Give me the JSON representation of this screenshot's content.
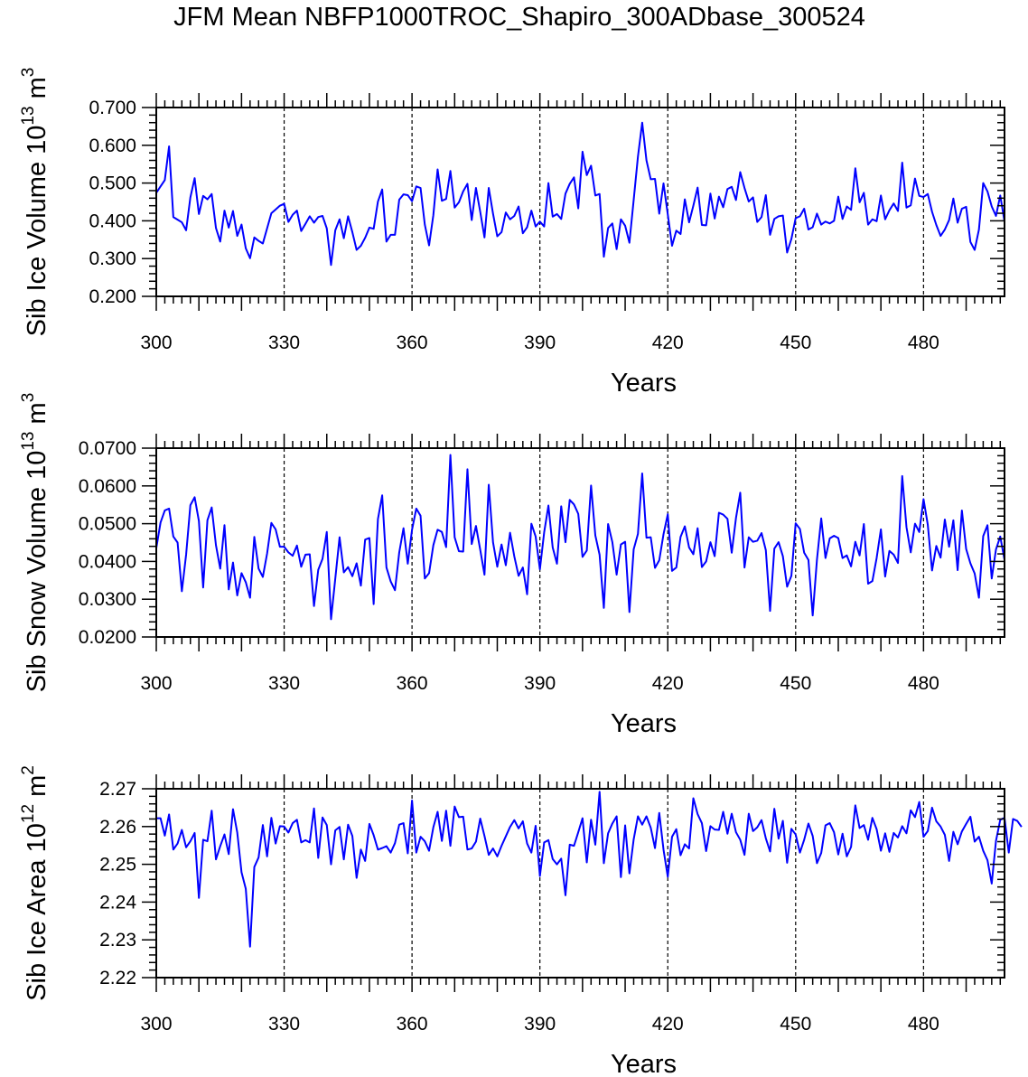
{
  "figure_title": "JFM Mean NBFP1000TROC_Shapiro_300ADbase_300524",
  "line_color": "#0000ff",
  "chart_data": [
    {
      "type": "line",
      "title": "JFM Mean NBFP1000TROC_Shapiro_300ADbase_300524",
      "xlabel": "Years",
      "ylabel": {
        "main": "Sib Ice Volume 10",
        "exp": "13",
        "unit": " m",
        "unit_exp": "3"
      },
      "xlim": [
        300,
        499
      ],
      "ylim": [
        0.2,
        0.7
      ],
      "xticks": [
        "300",
        "330",
        "360",
        "390",
        "420",
        "450",
        "480"
      ],
      "yticks": [
        "0.200",
        "0.300",
        "0.400",
        "0.500",
        "0.600",
        "0.700"
      ],
      "grid_x": [
        330,
        360,
        390,
        420,
        450,
        480
      ],
      "x_start": 300,
      "series": [
        {
          "name": "Sib Ice Volume",
          "values": [
            0.474,
            0.491,
            0.508,
            0.597,
            0.41,
            0.403,
            0.396,
            0.375,
            0.462,
            0.513,
            0.418,
            0.466,
            0.457,
            0.471,
            0.381,
            0.345,
            0.427,
            0.382,
            0.426,
            0.36,
            0.39,
            0.327,
            0.301,
            0.356,
            0.347,
            0.34,
            0.38,
            0.42,
            0.43,
            0.44,
            0.445,
            0.397,
            0.416,
            0.427,
            0.373,
            0.392,
            0.412,
            0.395,
            0.41,
            0.413,
            0.38,
            0.283,
            0.375,
            0.404,
            0.354,
            0.412,
            0.37,
            0.323,
            0.334,
            0.355,
            0.382,
            0.379,
            0.451,
            0.483,
            0.345,
            0.363,
            0.363,
            0.456,
            0.47,
            0.468,
            0.452,
            0.491,
            0.487,
            0.39,
            0.335,
            0.415,
            0.536,
            0.453,
            0.458,
            0.532,
            0.435,
            0.449,
            0.478,
            0.498,
            0.402,
            0.487,
            0.424,
            0.356,
            0.487,
            0.419,
            0.359,
            0.37,
            0.422,
            0.404,
            0.413,
            0.438,
            0.367,
            0.383,
            0.427,
            0.385,
            0.398,
            0.385,
            0.5,
            0.411,
            0.418,
            0.405,
            0.472,
            0.498,
            0.515,
            0.433,
            0.583,
            0.521,
            0.546,
            0.467,
            0.471,
            0.305,
            0.381,
            0.393,
            0.325,
            0.404,
            0.387,
            0.342,
            0.455,
            0.57,
            0.66,
            0.56,
            0.51,
            0.511,
            0.419,
            0.499,
            0.417,
            0.334,
            0.374,
            0.365,
            0.457,
            0.396,
            0.44,
            0.488,
            0.389,
            0.388,
            0.472,
            0.406,
            0.464,
            0.436,
            0.484,
            0.49,
            0.455,
            0.529,
            0.487,
            0.451,
            0.462,
            0.397,
            0.41,
            0.468,
            0.363,
            0.405,
            0.412,
            0.414,
            0.316,
            0.352,
            0.407,
            0.412,
            0.432,
            0.377,
            0.383,
            0.419,
            0.39,
            0.398,
            0.393,
            0.4,
            0.464,
            0.405,
            0.438,
            0.429,
            0.539,
            0.449,
            0.474,
            0.39,
            0.404,
            0.399,
            0.467,
            0.404,
            0.428,
            0.446,
            0.426,
            0.554,
            0.435,
            0.441,
            0.512,
            0.466,
            0.463,
            0.471,
            0.424,
            0.389,
            0.36,
            0.377,
            0.402,
            0.459,
            0.395,
            0.432,
            0.437,
            0.344,
            0.323,
            0.377,
            0.5,
            0.478,
            0.438,
            0.413,
            0.467,
            0.398
          ]
        }
      ]
    },
    {
      "type": "line",
      "xlabel": "Years",
      "ylabel": {
        "main": "Sib Snow Volume 10",
        "exp": "13",
        "unit": " m",
        "unit_exp": "3"
      },
      "xlim": [
        300,
        499
      ],
      "ylim": [
        0.02,
        0.07
      ],
      "xticks": [
        "300",
        "330",
        "360",
        "390",
        "420",
        "450",
        "480"
      ],
      "yticks": [
        "0.0200",
        "0.0300",
        "0.0400",
        "0.0500",
        "0.0600",
        "0.0700"
      ],
      "grid_x": [
        330,
        360,
        390,
        420,
        450,
        480
      ],
      "x_start": 300,
      "series": [
        {
          "name": "Sib Snow Volume",
          "values": [
            0.0435,
            0.0503,
            0.0535,
            0.054,
            0.0466,
            0.045,
            0.0321,
            0.0418,
            0.0549,
            0.057,
            0.0507,
            0.0331,
            0.0509,
            0.0543,
            0.0443,
            0.0381,
            0.0496,
            0.0326,
            0.0397,
            0.031,
            0.0369,
            0.0345,
            0.0304,
            0.0465,
            0.0381,
            0.0359,
            0.0421,
            0.0502,
            0.0485,
            0.0439,
            0.0439,
            0.0424,
            0.0415,
            0.0442,
            0.0386,
            0.0418,
            0.0419,
            0.0282,
            0.0378,
            0.0407,
            0.0478,
            0.0247,
            0.0355,
            0.0464,
            0.0371,
            0.0385,
            0.0361,
            0.0395,
            0.0336,
            0.0458,
            0.0462,
            0.0287,
            0.0512,
            0.0575,
            0.0384,
            0.0347,
            0.0324,
            0.0424,
            0.0488,
            0.0394,
            0.0484,
            0.054,
            0.0521,
            0.0355,
            0.0369,
            0.0443,
            0.0484,
            0.0478,
            0.0438,
            0.0682,
            0.0464,
            0.0427,
            0.0426,
            0.0644,
            0.0446,
            0.0494,
            0.0431,
            0.0365,
            0.0603,
            0.0451,
            0.0386,
            0.0445,
            0.039,
            0.0476,
            0.0413,
            0.0362,
            0.0384,
            0.0313,
            0.05,
            0.0466,
            0.0379,
            0.0477,
            0.0548,
            0.0437,
            0.0394,
            0.0546,
            0.0451,
            0.0563,
            0.0551,
            0.0526,
            0.0412,
            0.0429,
            0.0601,
            0.0469,
            0.0418,
            0.0277,
            0.0499,
            0.0451,
            0.0365,
            0.0445,
            0.0452,
            0.0266,
            0.0432,
            0.0473,
            0.0633,
            0.0463,
            0.0464,
            0.0383,
            0.0403,
            0.0472,
            0.0525,
            0.0375,
            0.0384,
            0.0465,
            0.0493,
            0.0437,
            0.0419,
            0.0488,
            0.0385,
            0.04,
            0.0451,
            0.0414,
            0.0529,
            0.0524,
            0.0513,
            0.0423,
            0.0515,
            0.0582,
            0.0384,
            0.0464,
            0.0452,
            0.0455,
            0.0475,
            0.043,
            0.0269,
            0.0434,
            0.0451,
            0.0414,
            0.0333,
            0.0362,
            0.0501,
            0.0486,
            0.0423,
            0.0404,
            0.0257,
            0.0405,
            0.0514,
            0.0409,
            0.0461,
            0.0468,
            0.0462,
            0.0409,
            0.0416,
            0.0387,
            0.0452,
            0.0416,
            0.0499,
            0.0341,
            0.0348,
            0.0409,
            0.0485,
            0.036,
            0.0428,
            0.0418,
            0.0396,
            0.0626,
            0.0491,
            0.0424,
            0.05,
            0.0478,
            0.0565,
            0.0497,
            0.0376,
            0.0441,
            0.041,
            0.0511,
            0.0439,
            0.0509,
            0.0377,
            0.0535,
            0.0433,
            0.0395,
            0.0368,
            0.0304,
            0.0467,
            0.0496,
            0.0355,
            0.0432,
            0.0466,
            0.0404
          ]
        }
      ]
    },
    {
      "type": "line",
      "xlabel": "Years",
      "ylabel": {
        "main": "Sib Ice Area 10",
        "exp": "12",
        "unit": " m",
        "unit_exp": "2"
      },
      "xlim": [
        300,
        499
      ],
      "ylim": [
        2.22,
        2.27
      ],
      "xticks": [
        "300",
        "330",
        "360",
        "390",
        "420",
        "450",
        "480"
      ],
      "yticks": [
        "2.22",
        "2.23",
        "2.24",
        "2.25",
        "2.26",
        "2.27"
      ],
      "grid_x": [
        330,
        360,
        390,
        420,
        450,
        480
      ],
      "x_start": 300,
      "series": [
        {
          "name": "Sib Ice Area",
          "values": [
            2.2622,
            2.2622,
            2.2576,
            2.2632,
            2.2539,
            2.2555,
            2.2591,
            2.2545,
            2.2561,
            2.2583,
            2.2411,
            2.2565,
            2.2561,
            2.2642,
            2.2513,
            2.2548,
            2.2579,
            2.2527,
            2.2646,
            2.2584,
            2.2479,
            2.2435,
            2.2282,
            2.2493,
            2.2518,
            2.2604,
            2.2521,
            2.2623,
            2.2555,
            2.2601,
            2.26,
            2.2584,
            2.2609,
            2.2618,
            2.2558,
            2.2564,
            2.2558,
            2.2648,
            2.2517,
            2.2624,
            2.2604,
            2.25,
            2.259,
            2.2599,
            2.2513,
            2.2605,
            2.2575,
            2.2464,
            2.2539,
            2.2509,
            2.2607,
            2.2577,
            2.2539,
            2.2543,
            2.2548,
            2.2531,
            2.2556,
            2.2605,
            2.2609,
            2.2529,
            2.2669,
            2.2531,
            2.2573,
            2.2561,
            2.2536,
            2.2598,
            2.2639,
            2.2562,
            2.2642,
            2.2549,
            2.2653,
            2.2625,
            2.2626,
            2.2539,
            2.2542,
            2.256,
            2.2621,
            2.2575,
            2.2525,
            2.2542,
            2.2521,
            2.2549,
            2.2574,
            2.2599,
            2.2617,
            2.2595,
            2.2614,
            2.2555,
            2.2531,
            2.2602,
            2.2469,
            2.2558,
            2.2564,
            2.2514,
            2.25,
            2.2515,
            2.2418,
            2.2552,
            2.2549,
            2.2585,
            2.2622,
            2.2505,
            2.2618,
            2.2552,
            2.2692,
            2.2503,
            2.2582,
            2.2608,
            2.2627,
            2.2466,
            2.2603,
            2.2476,
            2.2566,
            2.2627,
            2.2605,
            2.2627,
            2.2597,
            2.2543,
            2.2636,
            2.2539,
            2.2467,
            2.2573,
            2.2593,
            2.2524,
            2.2553,
            2.2542,
            2.2675,
            2.2633,
            2.2609,
            2.2535,
            2.2601,
            2.2592,
            2.2591,
            2.2639,
            2.2581,
            2.2634,
            2.2585,
            2.2565,
            2.2525,
            2.2634,
            2.2588,
            2.2598,
            2.2617,
            2.2569,
            2.2534,
            2.2647,
            2.2568,
            2.2615,
            2.2504,
            2.2594,
            2.2579,
            2.2531,
            2.2565,
            2.2608,
            2.2575,
            2.2503,
            2.253,
            2.2603,
            2.2609,
            2.2585,
            2.2526,
            2.2581,
            2.2521,
            2.2546,
            2.2656,
            2.2596,
            2.2604,
            2.2565,
            2.2623,
            2.2593,
            2.2536,
            2.2582,
            2.2533,
            2.2583,
            2.2571,
            2.2601,
            2.2582,
            2.2643,
            2.2625,
            2.2665,
            2.2573,
            2.2588,
            2.265,
            2.2614,
            2.26,
            2.2578,
            2.2509,
            2.2586,
            2.2553,
            2.2587,
            2.2607,
            2.2626,
            2.256,
            2.2573,
            2.2536,
            2.2511,
            2.2449,
            2.2562,
            2.2618,
            2.2623,
            2.2531,
            2.262,
            2.2615,
            2.2599
          ]
        }
      ]
    }
  ]
}
